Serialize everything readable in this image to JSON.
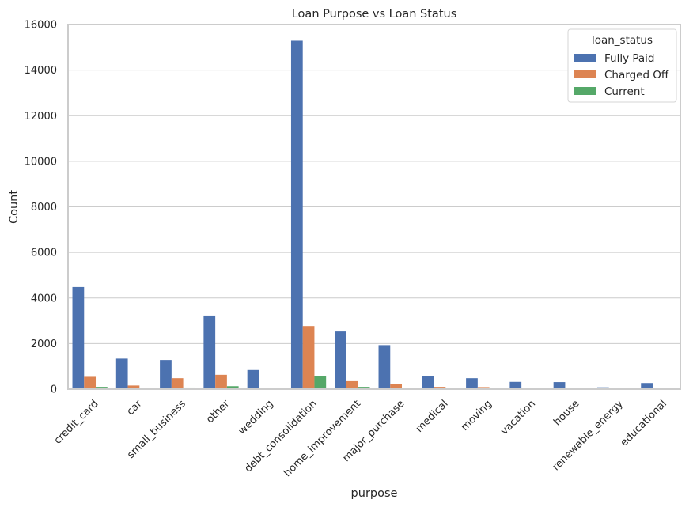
{
  "chart_data": {
    "type": "bar",
    "title": "Loan Purpose vs Loan Status",
    "xlabel": "purpose",
    "ylabel": "Count",
    "ylim": [
      0,
      16000
    ],
    "yticks": [
      0,
      2000,
      4000,
      6000,
      8000,
      10000,
      12000,
      14000,
      16000
    ],
    "grid": true,
    "legend": {
      "title": "loan_status",
      "position": "top-right"
    },
    "categories": [
      "credit_card",
      "car",
      "small_business",
      "other",
      "wedding",
      "debt_consolidation",
      "home_improvement",
      "major_purchase",
      "medical",
      "moving",
      "vacation",
      "house",
      "renewable_energy",
      "educational"
    ],
    "series": [
      {
        "name": "Fully Paid",
        "color": "#4c72b0",
        "values": [
          4480,
          1340,
          1280,
          3230,
          840,
          15290,
          2530,
          1930,
          580,
          480,
          320,
          310,
          80,
          270
        ]
      },
      {
        "name": "Charged Off",
        "color": "#dd8452",
        "values": [
          540,
          160,
          480,
          630,
          60,
          2770,
          350,
          220,
          100,
          90,
          50,
          50,
          20,
          50
        ]
      },
      {
        "name": "Current",
        "color": "#55a868",
        "values": [
          100,
          50,
          70,
          130,
          20,
          590,
          100,
          40,
          30,
          10,
          10,
          20,
          5,
          10
        ]
      }
    ]
  }
}
